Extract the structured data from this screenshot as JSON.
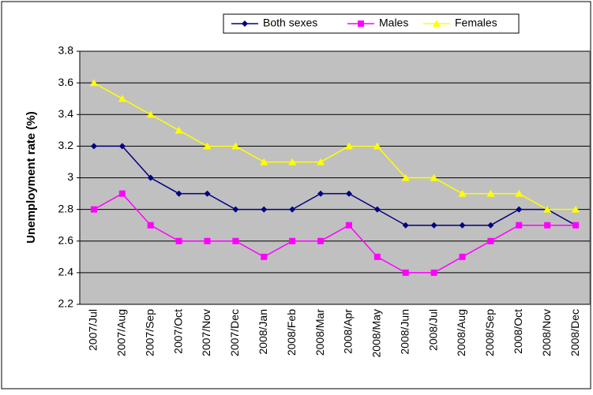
{
  "chart_data": {
    "type": "line",
    "y_label": "Unemployment rate (%)",
    "categories": [
      "2007/Jul",
      "2007/Aug",
      "2007/Sep",
      "2007/Oct",
      "2007/Nov",
      "2007/Dec",
      "2008/Jan",
      "2008/Feb",
      "2008/Mar",
      "2008/Apr",
      "2008/May",
      "2008/Jun",
      "2008/Jul",
      "2008/Aug",
      "2008/Sep",
      "2008/Oct",
      "2008/Nov",
      "2008/Dec"
    ],
    "series": [
      {
        "name": "Both sexes",
        "color": "#000080",
        "marker": "diamond",
        "values": [
          3.2,
          3.2,
          3.0,
          2.9,
          2.9,
          2.8,
          2.8,
          2.8,
          2.9,
          2.9,
          2.8,
          2.7,
          2.7,
          2.7,
          2.7,
          2.8,
          2.8,
          2.7
        ]
      },
      {
        "name": "Males",
        "color": "#ff00ff",
        "marker": "square",
        "values": [
          2.8,
          2.9,
          2.7,
          2.6,
          2.6,
          2.6,
          2.5,
          2.6,
          2.6,
          2.7,
          2.5,
          2.4,
          2.4,
          2.5,
          2.6,
          2.7,
          2.7,
          2.7
        ]
      },
      {
        "name": "Females",
        "color": "#ffff00",
        "marker": "triangle",
        "values": [
          3.6,
          3.5,
          3.4,
          3.3,
          3.2,
          3.2,
          3.1,
          3.1,
          3.1,
          3.2,
          3.2,
          3.0,
          3.0,
          2.9,
          2.9,
          2.9,
          2.8,
          2.8
        ]
      }
    ],
    "ylim": [
      2.2,
      3.8
    ],
    "yticks": [
      2.2,
      2.4,
      2.6,
      2.8,
      3,
      3.2,
      3.4,
      3.6,
      3.8
    ],
    "grid": true,
    "legend": "top"
  }
}
